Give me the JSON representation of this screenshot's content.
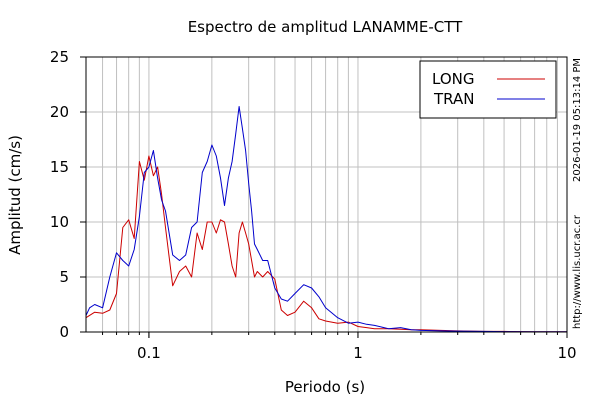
{
  "chart_data": {
    "type": "line",
    "title": "Espectro de amplitud LANAMME-CTT",
    "xlabel": "Periodo (s)",
    "ylabel": "Amplitud (cm/s)",
    "x_scale": "log",
    "xlim": [
      0.05,
      10
    ],
    "ylim": [
      0,
      25
    ],
    "x_tick_labels": [
      "0.1",
      "1",
      "10"
    ],
    "x_ticks": [
      0.1,
      1,
      10
    ],
    "y_tick_labels": [
      "0",
      "5",
      "10",
      "15",
      "20",
      "25"
    ],
    "y_ticks": [
      0,
      5,
      10,
      15,
      20,
      25
    ],
    "grid": true,
    "legend_position": "top-right",
    "timestamp": "2026-01-19 05:13:14 PM",
    "url": "http://www.lis.ucr.ac.cr",
    "series": [
      {
        "name": "LONG",
        "color": "#cc0000",
        "x": [
          0.05,
          0.055,
          0.06,
          0.065,
          0.07,
          0.075,
          0.08,
          0.085,
          0.09,
          0.095,
          0.1,
          0.105,
          0.11,
          0.115,
          0.12,
          0.13,
          0.14,
          0.15,
          0.16,
          0.17,
          0.18,
          0.19,
          0.2,
          0.21,
          0.22,
          0.23,
          0.24,
          0.25,
          0.26,
          0.27,
          0.28,
          0.29,
          0.3,
          0.31,
          0.32,
          0.33,
          0.35,
          0.37,
          0.4,
          0.43,
          0.46,
          0.5,
          0.55,
          0.6,
          0.65,
          0.7,
          0.8,
          0.9,
          1.0,
          1.1,
          1.2,
          1.4,
          1.6,
          1.8,
          2.0,
          2.5,
          3.0,
          4.0,
          5.0,
          7.0,
          10.0
        ],
        "values": [
          1.3,
          1.8,
          1.7,
          2.0,
          3.5,
          9.5,
          10.2,
          8.5,
          15.5,
          13.8,
          16.0,
          14.2,
          15.0,
          12.5,
          9.5,
          4.2,
          5.5,
          6.0,
          5.0,
          9.0,
          7.5,
          10.0,
          10.0,
          9.0,
          10.2,
          10.0,
          8.0,
          6.0,
          5.0,
          9.0,
          10.0,
          9.0,
          8.0,
          6.5,
          5.0,
          5.5,
          5.0,
          5.5,
          4.8,
          2.0,
          1.5,
          1.8,
          2.8,
          2.2,
          1.2,
          1.0,
          0.8,
          0.9,
          0.5,
          0.4,
          0.3,
          0.3,
          0.25,
          0.2,
          0.2,
          0.15,
          0.1,
          0.05,
          0.05,
          0.03,
          0.02
        ]
      },
      {
        "name": "TRAN",
        "color": "#0000cc",
        "x": [
          0.05,
          0.052,
          0.055,
          0.06,
          0.065,
          0.07,
          0.075,
          0.08,
          0.085,
          0.09,
          0.095,
          0.1,
          0.105,
          0.11,
          0.115,
          0.12,
          0.13,
          0.14,
          0.15,
          0.16,
          0.17,
          0.18,
          0.19,
          0.2,
          0.21,
          0.22,
          0.23,
          0.24,
          0.25,
          0.26,
          0.27,
          0.28,
          0.29,
          0.3,
          0.31,
          0.32,
          0.33,
          0.35,
          0.37,
          0.4,
          0.43,
          0.46,
          0.5,
          0.55,
          0.6,
          0.65,
          0.7,
          0.8,
          0.9,
          1.0,
          1.1,
          1.2,
          1.4,
          1.6,
          1.8,
          2.0,
          2.5,
          3.0,
          4.0,
          5.0,
          7.0,
          10.0
        ],
        "values": [
          1.5,
          2.2,
          2.5,
          2.2,
          5.0,
          7.2,
          6.5,
          6.0,
          7.5,
          10.5,
          14.5,
          15.0,
          16.5,
          14.0,
          12.0,
          11.0,
          7.0,
          6.5,
          7.0,
          9.5,
          10.0,
          14.5,
          15.5,
          17.0,
          16.0,
          14.0,
          11.5,
          14.0,
          15.5,
          18.0,
          20.5,
          18.5,
          16.5,
          13.5,
          11.0,
          8.0,
          7.5,
          6.5,
          6.5,
          4.0,
          3.0,
          2.8,
          3.5,
          4.3,
          4.0,
          3.2,
          2.2,
          1.3,
          0.8,
          0.9,
          0.7,
          0.6,
          0.3,
          0.4,
          0.2,
          0.15,
          0.1,
          0.08,
          0.05,
          0.04,
          0.03,
          0.02
        ]
      }
    ]
  }
}
